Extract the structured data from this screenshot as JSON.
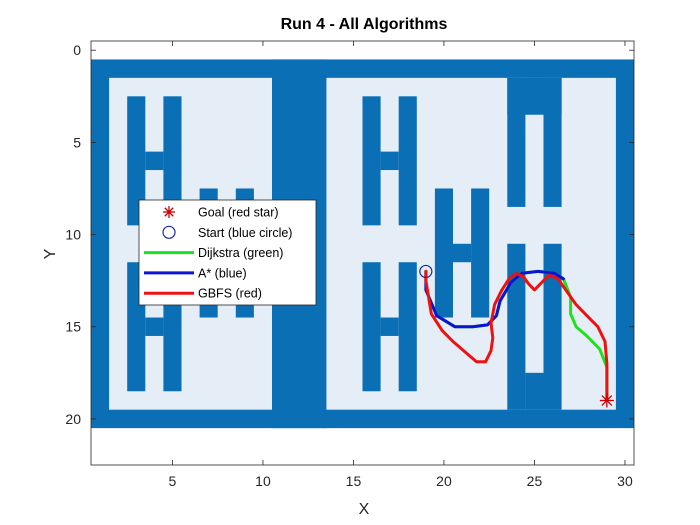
{
  "chart_data": {
    "type": "line",
    "title": "Run 4 - All Algorithms",
    "xlabel": "X",
    "ylabel": "Y",
    "xlim": [
      0.5,
      30.5
    ],
    "ylim": [
      -0.5,
      22.5
    ],
    "y_reversed": true,
    "xticks": [
      "5",
      "10",
      "15",
      "20",
      "25",
      "30"
    ],
    "yticks": [
      "0",
      "5",
      "10",
      "15",
      "20"
    ],
    "legend_position": "center-left",
    "colors": {
      "wall": "#0b6fb5",
      "free": "#e5eef6",
      "dijkstra": "#1fe01f",
      "astar": "#0a14d2",
      "gbfs": "#ee1111",
      "goal": "#cc0000",
      "start": "#1a2a9a"
    },
    "grid_free_regions": [
      {
        "x": [
          1.5,
          10.5
        ],
        "y": [
          1.5,
          19.5
        ]
      },
      {
        "x": [
          13.5,
          29.5
        ],
        "y": [
          1.5,
          19.5
        ]
      }
    ],
    "grid_wall_regions": [
      {
        "x": [
          10.5,
          13.5
        ],
        "y": [
          0.5,
          20.5
        ]
      },
      {
        "x": [
          2.5,
          3.5
        ],
        "y": [
          2.5,
          9.5
        ]
      },
      {
        "x": [
          4.5,
          5.5
        ],
        "y": [
          2.5,
          9.5
        ]
      },
      {
        "x": [
          3.5,
          4.5
        ],
        "y": [
          5.5,
          6.5
        ]
      },
      {
        "x": [
          2.5,
          3.5
        ],
        "y": [
          11.5,
          18.5
        ]
      },
      {
        "x": [
          4.5,
          5.5
        ],
        "y": [
          11.5,
          18.5
        ]
      },
      {
        "x": [
          3.5,
          4.5
        ],
        "y": [
          14.5,
          15.5
        ]
      },
      {
        "x": [
          6.5,
          7.5
        ],
        "y": [
          7.5,
          14.5
        ]
      },
      {
        "x": [
          8.5,
          9.5
        ],
        "y": [
          7.5,
          14.5
        ]
      },
      {
        "x": [
          7.5,
          8.5
        ],
        "y": [
          10.5,
          11.5
        ]
      },
      {
        "x": [
          11.5,
          12.5
        ],
        "y": [
          2.5,
          9.5
        ]
      },
      {
        "x": [
          11.5,
          12.5
        ],
        "y": [
          11.5,
          18.5
        ]
      },
      {
        "x": [
          15.5,
          16.5
        ],
        "y": [
          2.5,
          9.5
        ]
      },
      {
        "x": [
          17.5,
          18.5
        ],
        "y": [
          2.5,
          9.5
        ]
      },
      {
        "x": [
          16.5,
          17.5
        ],
        "y": [
          5.5,
          6.5
        ]
      },
      {
        "x": [
          15.5,
          16.5
        ],
        "y": [
          11.5,
          18.5
        ]
      },
      {
        "x": [
          17.5,
          18.5
        ],
        "y": [
          11.5,
          18.5
        ]
      },
      {
        "x": [
          16.5,
          17.5
        ],
        "y": [
          14.5,
          15.5
        ]
      },
      {
        "x": [
          19.5,
          20.5
        ],
        "y": [
          7.5,
          14.5
        ]
      },
      {
        "x": [
          21.5,
          22.5
        ],
        "y": [
          7.5,
          14.5
        ]
      },
      {
        "x": [
          20.5,
          21.5
        ],
        "y": [
          10.5,
          11.5
        ]
      },
      {
        "x": [
          23.5,
          26.5
        ],
        "y": [
          1.5,
          3.5
        ]
      },
      {
        "x": [
          23.5,
          24.5
        ],
        "y": [
          1.5,
          8.5
        ]
      },
      {
        "x": [
          25.5,
          26.5
        ],
        "y": [
          1.5,
          8.5
        ]
      },
      {
        "x": [
          23.5,
          24.5
        ],
        "y": [
          10.5,
          19.5
        ]
      },
      {
        "x": [
          25.5,
          26.5
        ],
        "y": [
          10.5,
          19.5
        ]
      },
      {
        "x": [
          24.5,
          25.5
        ],
        "y": [
          17.5,
          19.5
        ]
      }
    ],
    "goal": {
      "x": 29,
      "y": 19
    },
    "start": {
      "x": 19,
      "y": 12
    },
    "series": [
      {
        "name": "Dijkstra (green)",
        "x": [
          19,
          19,
          19.6,
          20.6,
          21.6,
          22.4,
          22.9,
          23.1,
          23.7,
          24.3,
          25.2,
          26.1,
          26.6,
          27.0,
          27.0,
          27.3,
          27.9,
          28.6,
          29.0,
          29.0
        ],
        "y": [
          12,
          13.0,
          14.4,
          15.0,
          15.0,
          14.9,
          14.4,
          13.6,
          12.6,
          12.1,
          12.0,
          12.1,
          12.4,
          13.4,
          14.3,
          15.0,
          15.5,
          16.2,
          17.2,
          19
        ]
      },
      {
        "name": "A* (blue)",
        "x": [
          19,
          19,
          19.6,
          20.6,
          21.6,
          22.4,
          22.9,
          23.1,
          23.7,
          24.3,
          25.2,
          26.1,
          26.6
        ],
        "y": [
          12,
          13.0,
          14.4,
          15.0,
          15.0,
          14.9,
          14.4,
          13.6,
          12.6,
          12.1,
          12.0,
          12.1,
          12.4
        ]
      },
      {
        "name": "GBFS (red)",
        "x": [
          19,
          19.0,
          19.3,
          19.9,
          20.5,
          21.2,
          21.8,
          22.3,
          22.6,
          22.7,
          22.6,
          22.8,
          23.2,
          23.6,
          24.0,
          24.4,
          24.7,
          25.0,
          25.4,
          25.8,
          26.3,
          26.8,
          27.3,
          27.9,
          28.5,
          28.9,
          29.0,
          29.0
        ],
        "y": [
          12,
          12.5,
          14.3,
          15.2,
          15.8,
          16.4,
          16.9,
          16.9,
          16.3,
          15.6,
          14.8,
          13.8,
          13.0,
          12.4,
          12.1,
          12.3,
          12.7,
          13.0,
          12.6,
          12.2,
          12.4,
          13.1,
          13.8,
          14.4,
          15.0,
          15.8,
          17.0,
          19
        ]
      }
    ],
    "legend": [
      {
        "label": "Goal (red star)",
        "marker": "star"
      },
      {
        "label": "Start (blue circle)",
        "marker": "circle"
      },
      {
        "label": "Dijkstra (green)",
        "marker": "line"
      },
      {
        "label": "A* (blue)",
        "marker": "line"
      },
      {
        "label": "GBFS (red)",
        "marker": "line"
      }
    ]
  }
}
